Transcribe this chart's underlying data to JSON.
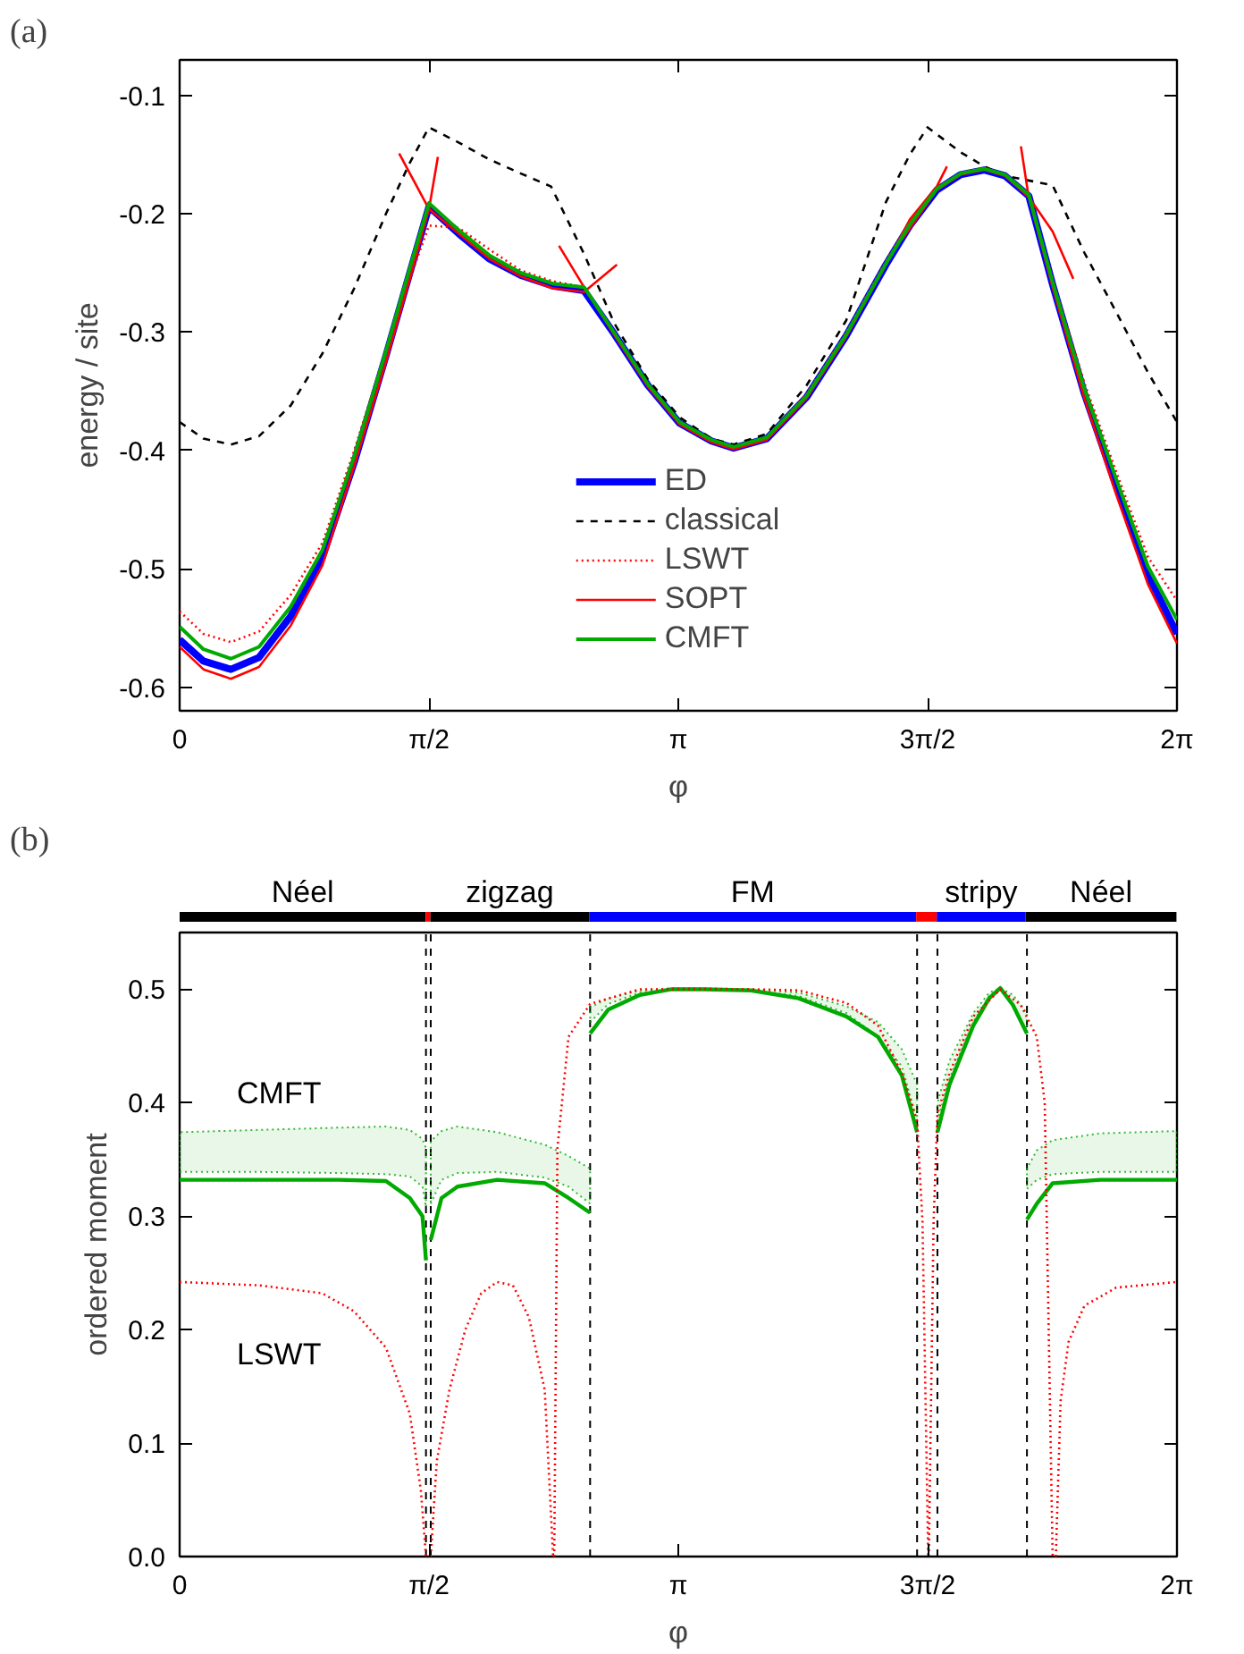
{
  "chart_data": [
    {
      "type": "line",
      "title": "(a)",
      "xlabel": "φ",
      "ylabel": "energy / site",
      "legend": "bottom",
      "xlim": [
        0,
        6.2832
      ],
      "xticks": [
        0,
        {
          "value": 1.5708,
          "label": "π/2"
        },
        {
          "value": 3.1416,
          "label": "π"
        },
        {
          "value": 4.7124,
          "label": "3π/2"
        },
        {
          "value": 6.2832,
          "label": "2π"
        }
      ],
      "ylim": [
        -0.62,
        -0.07
      ],
      "yticks": [
        -0.6,
        -0.5,
        -0.4,
        -0.3,
        -0.2,
        -0.1
      ],
      "series": [
        {
          "name": "ED",
          "color": "#0000ff",
          "line_style": "solid",
          "x": [
            0,
            0.15,
            0.323,
            0.5,
            0.7,
            0.9,
            1.1,
            1.3,
            1.45,
            1.571,
            1.76,
            1.95,
            2.15,
            2.35,
            2.548,
            2.74,
            2.95,
            3.15,
            3.35,
            3.49,
            3.7,
            3.95,
            4.2,
            4.45,
            4.6,
            4.77,
            4.92,
            5.07,
            5.2,
            5.35,
            5.5,
            5.7,
            5.9,
            6.1,
            6.283
          ],
          "values": [
            -0.56,
            -0.578,
            -0.585,
            -0.575,
            -0.54,
            -0.49,
            -0.41,
            -0.32,
            -0.25,
            -0.194,
            -0.217,
            -0.238,
            -0.252,
            -0.261,
            -0.265,
            -0.302,
            -0.345,
            -0.377,
            -0.392,
            -0.398,
            -0.39,
            -0.355,
            -0.303,
            -0.243,
            -0.21,
            -0.18,
            -0.167,
            -0.163,
            -0.168,
            -0.185,
            -0.26,
            -0.352,
            -0.43,
            -0.505,
            -0.555
          ]
        },
        {
          "name": "classical",
          "color": "#000000",
          "line_style": "dashed",
          "x": [
            0,
            0.15,
            0.323,
            0.5,
            0.7,
            0.9,
            1.1,
            1.3,
            1.45,
            1.571,
            1.76,
            1.95,
            2.15,
            2.34,
            2.548,
            2.74,
            2.95,
            3.15,
            3.35,
            3.49,
            3.7,
            3.95,
            4.2,
            4.45,
            4.6,
            4.712,
            4.92,
            5.07,
            5.2,
            5.39,
            5.5,
            5.7,
            5.9,
            6.1,
            6.283
          ],
          "values": [
            -0.376,
            -0.39,
            -0.395,
            -0.388,
            -0.362,
            -0.318,
            -0.263,
            -0.2,
            -0.157,
            -0.127,
            -0.14,
            -0.154,
            -0.166,
            -0.177,
            -0.234,
            -0.293,
            -0.34,
            -0.372,
            -0.39,
            -0.395,
            -0.386,
            -0.345,
            -0.29,
            -0.19,
            -0.15,
            -0.127,
            -0.148,
            -0.16,
            -0.168,
            -0.173,
            -0.176,
            -0.233,
            -0.283,
            -0.334,
            -0.376
          ]
        },
        {
          "name": "LSWT",
          "color": "#ff0000",
          "line_style": "dotted",
          "x": [
            0,
            0.15,
            0.323,
            0.5,
            0.7,
            0.9,
            1.1,
            1.3,
            1.45,
            1.571,
            1.76,
            1.95,
            2.15,
            2.35,
            2.548,
            2.74,
            2.95,
            3.15,
            3.35,
            3.49,
            3.7,
            3.95,
            4.2,
            4.45,
            4.6,
            4.77,
            4.92,
            5.07,
            5.2,
            5.35,
            5.5,
            5.7,
            5.9,
            6.1,
            6.283
          ],
          "values": [
            -0.536,
            -0.555,
            -0.562,
            -0.553,
            -0.522,
            -0.478,
            -0.4,
            -0.315,
            -0.255,
            -0.21,
            -0.212,
            -0.23,
            -0.248,
            -0.257,
            -0.262,
            -0.3,
            -0.343,
            -0.376,
            -0.391,
            -0.397,
            -0.389,
            -0.352,
            -0.3,
            -0.24,
            -0.207,
            -0.178,
            -0.166,
            -0.162,
            -0.167,
            -0.184,
            -0.255,
            -0.343,
            -0.418,
            -0.49,
            -0.527
          ]
        },
        {
          "name": "SOPT",
          "color": "#ff0000",
          "line_style": "solid",
          "x": [
            0,
            0.15,
            0.323,
            0.5,
            0.7,
            0.9,
            1.1,
            1.3,
            1.45,
            1.571,
            1.627
          ],
          "values": [
            -0.566,
            -0.585,
            -0.593,
            -0.583,
            -0.548,
            -0.497,
            -0.413,
            -0.325,
            -0.255,
            -0.196,
            -0.152
          ]
        },
        {
          "color": "#ff0000",
          "line_style": "solid",
          "x": [
            1.383,
            1.571,
            1.76,
            1.95,
            2.15,
            2.35,
            2.548,
            2.755
          ],
          "values": [
            -0.149,
            -0.196,
            -0.217,
            -0.238,
            -0.253,
            -0.263,
            -0.266,
            -0.243
          ]
        },
        {
          "color": "#ff0000",
          "line_style": "solid",
          "x": [
            2.39,
            2.548,
            2.74,
            2.95,
            3.15,
            3.35,
            3.49,
            3.7,
            3.95,
            4.2,
            4.45,
            4.6,
            4.77,
            4.834
          ],
          "values": [
            -0.227,
            -0.262,
            -0.303,
            -0.346,
            -0.378,
            -0.393,
            -0.399,
            -0.391,
            -0.356,
            -0.304,
            -0.243,
            -0.205,
            -0.177,
            -0.16
          ]
        },
        {
          "color": "#ff0000",
          "line_style": "solid",
          "x": [
            4.55,
            4.77,
            4.92,
            5.07,
            5.2,
            5.35,
            5.5,
            5.63
          ],
          "values": [
            -0.222,
            -0.18,
            -0.167,
            -0.163,
            -0.168,
            -0.186,
            -0.215,
            -0.255
          ]
        },
        {
          "color": "#ff0000",
          "line_style": "solid",
          "x": [
            5.3,
            5.348,
            5.5,
            5.7,
            5.9,
            6.1,
            6.283
          ],
          "values": [
            -0.143,
            -0.185,
            -0.262,
            -0.356,
            -0.437,
            -0.513,
            -0.563
          ]
        },
        {
          "name": "CMFT",
          "color": "#00aa00",
          "line_style": "solid",
          "x": [
            0,
            0.15,
            0.323,
            0.5,
            0.7,
            0.9,
            1.1,
            1.3,
            1.45,
            1.571,
            1.76,
            1.95,
            2.15,
            2.35,
            2.548,
            2.74,
            2.95,
            3.15,
            3.35,
            3.49,
            3.7,
            3.95,
            4.2,
            4.45,
            4.6,
            4.77,
            4.92,
            5.07,
            5.2,
            5.35,
            5.5,
            5.7,
            5.9,
            6.1,
            6.283
          ],
          "values": [
            -0.549,
            -0.568,
            -0.576,
            -0.566,
            -0.532,
            -0.484,
            -0.405,
            -0.316,
            -0.246,
            -0.191,
            -0.214,
            -0.235,
            -0.25,
            -0.259,
            -0.262,
            -0.301,
            -0.344,
            -0.376,
            -0.391,
            -0.397,
            -0.389,
            -0.354,
            -0.302,
            -0.242,
            -0.209,
            -0.179,
            -0.166,
            -0.162,
            -0.167,
            -0.184,
            -0.258,
            -0.348,
            -0.424,
            -0.498,
            -0.543
          ]
        }
      ]
    },
    {
      "type": "bar",
      "title": "(b)",
      "orientation": "horizontal",
      "stacked": true,
      "tick_labels": false,
      "categories": [
        null
      ],
      "xlim": [
        0,
        6.2832
      ],
      "series": [
        {
          "name": "Néel",
          "color": "#000000",
          "values": [
            1.55
          ]
        },
        {
          "color": "#ff0000",
          "values": [
            0.03
          ]
        },
        {
          "name": "zigzag",
          "color": "#000000",
          "values": [
            1.0
          ]
        },
        {
          "name": "FM",
          "color": "#0000ff",
          "values": [
            2.06
          ]
        },
        {
          "color": "#ff0000",
          "values": [
            0.13
          ]
        },
        {
          "name": "stripy",
          "color": "#0000ff",
          "values": [
            0.56
          ]
        },
        {
          "name": "Néel",
          "color": "#000000",
          "values": [
            0.95
          ]
        }
      ]
    },
    {
      "type": "line",
      "xlabel": "φ",
      "ylabel": "ordered moment",
      "xlim": [
        0,
        6.2832
      ],
      "xticks": [
        0,
        {
          "value": 1.5708,
          "label": "π/2"
        },
        {
          "value": 3.1416,
          "label": "π"
        },
        {
          "value": 4.7124,
          "label": "3π/2"
        },
        {
          "value": 6.2832,
          "label": "2π"
        }
      ],
      "ylim": [
        0,
        0.55
      ],
      "yticks": [
        {
          "value": 0,
          "label": "0.0"
        },
        0.1,
        0.2,
        0.3,
        0.4,
        0.5
      ],
      "ref_lines": [
        {
          "axis": "x",
          "value": 1.552,
          "color": "#000000",
          "line_style": "dashed"
        },
        {
          "axis": "x",
          "value": 1.582,
          "color": "#000000",
          "line_style": "dashed"
        },
        {
          "axis": "x",
          "value": 2.586,
          "color": "#000000",
          "line_style": "dashed"
        },
        {
          "axis": "x",
          "value": 4.646,
          "color": "#000000",
          "line_style": "dashed"
        },
        {
          "axis": "x",
          "value": 4.774,
          "color": "#000000",
          "line_style": "dashed"
        },
        {
          "axis": "x",
          "value": 5.338,
          "color": "#000000",
          "line_style": "dashed"
        }
      ],
      "series": [
        {
          "name": "CMFT",
          "color": "#00aa00",
          "line_style": "solid",
          "x": [
            0,
            0.5,
            1.0,
            1.3,
            1.45,
            1.53,
            1.552
          ],
          "values": [
            0.332,
            0.332,
            0.332,
            0.331,
            0.316,
            0.3,
            0.261
          ],
          "lower": [
            0.339,
            0.339,
            0.338,
            0.337,
            0.335,
            0.326,
            0.308
          ],
          "upper": [
            0.374,
            0.376,
            0.378,
            0.379,
            0.376,
            0.368,
            0.36
          ]
        },
        {
          "color": "#00aa00",
          "line_style": "solid",
          "x": [
            1.582,
            1.65,
            1.75,
            2.0,
            2.3,
            2.45,
            2.586
          ],
          "values": [
            0.279,
            0.316,
            0.326,
            0.332,
            0.329,
            0.316,
            0.303
          ],
          "lower": [
            0.311,
            0.332,
            0.338,
            0.339,
            0.334,
            0.326,
            0.311
          ],
          "upper": [
            0.366,
            0.375,
            0.379,
            0.374,
            0.363,
            0.353,
            0.342
          ]
        },
        {
          "color": "#00aa00",
          "line_style": "solid",
          "x": [
            2.586,
            2.7,
            2.9,
            3.1,
            3.3,
            3.6,
            3.9,
            4.2,
            4.4,
            4.55,
            4.646
          ],
          "values": [
            0.461,
            0.482,
            0.495,
            0.5,
            0.5,
            0.499,
            0.492,
            0.476,
            0.458,
            0.424,
            0.374
          ],
          "lower": [
            0.471,
            0.487,
            0.497,
            0.5,
            0.5,
            0.499,
            0.494,
            0.479,
            0.458,
            0.432,
            0.384
          ],
          "upper": [
            0.484,
            0.492,
            0.499,
            0.501,
            0.501,
            0.5,
            0.497,
            0.485,
            0.471,
            0.447,
            0.416
          ]
        },
        {
          "color": "#00aa00",
          "line_style": "solid",
          "x": [
            4.774,
            4.85,
            5.0,
            5.1,
            5.17,
            5.25,
            5.338
          ],
          "values": [
            0.374,
            0.416,
            0.468,
            0.492,
            0.501,
            0.486,
            0.461
          ],
          "lower": [
            0.384,
            0.421,
            0.471,
            0.494,
            0.501,
            0.486,
            0.461
          ],
          "upper": [
            0.4,
            0.437,
            0.479,
            0.497,
            0.501,
            0.495,
            0.479
          ]
        },
        {
          "color": "#00aa00",
          "line_style": "solid",
          "x": [
            5.338,
            5.4,
            5.5,
            5.8,
            6.283
          ],
          "values": [
            0.297,
            0.311,
            0.329,
            0.332,
            0.332
          ],
          "lower": [
            0.324,
            0.332,
            0.337,
            0.339,
            0.339
          ],
          "upper": [
            0.342,
            0.358,
            0.367,
            0.373,
            0.375
          ]
        },
        {
          "name": "LSWT",
          "color": "#ff0000",
          "line_style": "dotted",
          "x": [
            0,
            0.5,
            0.9,
            1.1,
            1.3,
            1.45,
            1.52,
            1.552
          ],
          "values": [
            0.242,
            0.239,
            0.232,
            0.216,
            0.184,
            0.126,
            0.058,
            0.0
          ]
        },
        {
          "color": "#ff0000",
          "line_style": "dotted",
          "x": [
            1.582,
            1.62,
            1.7,
            1.8,
            1.9,
            2.0,
            2.1,
            2.2,
            2.3,
            2.353
          ],
          "values": [
            0.0,
            0.084,
            0.147,
            0.2,
            0.232,
            0.242,
            0.239,
            0.211,
            0.147,
            0.0
          ]
        },
        {
          "color": "#ff0000",
          "line_style": "dotted",
          "x": [
            2.36,
            2.38,
            2.45,
            2.586,
            2.9,
            3.3,
            3.6,
            3.9,
            4.2,
            4.4,
            4.55,
            4.646,
            4.68,
            4.716
          ],
          "values": [
            0.0,
            0.36,
            0.458,
            0.487,
            0.5,
            0.5,
            0.5,
            0.499,
            0.488,
            0.468,
            0.426,
            0.384,
            0.295,
            0.0
          ]
        },
        {
          "color": "#ff0000",
          "line_style": "dotted",
          "x": [
            4.72,
            4.75,
            4.774,
            4.85,
            5.0,
            5.17,
            5.3,
            5.4,
            5.45,
            5.5
          ],
          "values": [
            0.0,
            0.295,
            0.39,
            0.426,
            0.476,
            0.5,
            0.486,
            0.458,
            0.4,
            0.0
          ]
        },
        {
          "color": "#ff0000",
          "line_style": "dotted",
          "x": [
            5.52,
            5.55,
            5.6,
            5.7,
            5.9,
            6.283
          ],
          "values": [
            0.0,
            0.137,
            0.189,
            0.221,
            0.237,
            0.242
          ]
        }
      ]
    }
  ]
}
